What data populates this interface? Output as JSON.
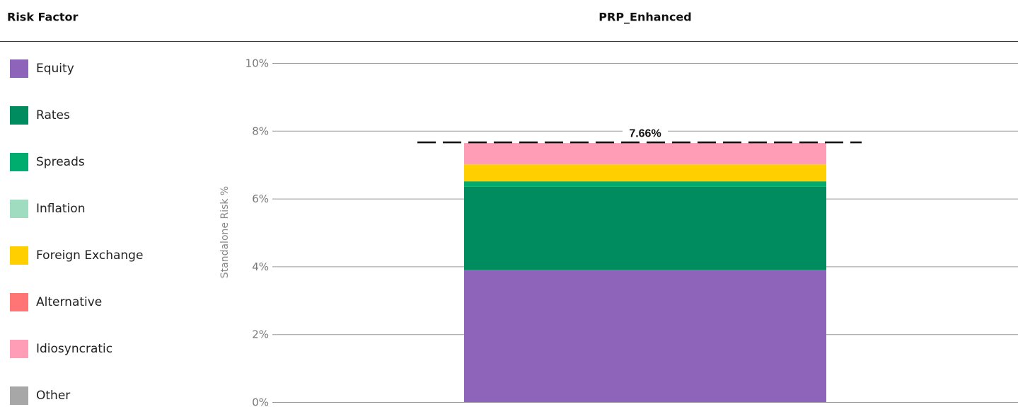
{
  "chart_data": {
    "type": "stacked_bar",
    "legend_title": "Risk Factor",
    "categories": [
      "PRP_Enhanced"
    ],
    "y_label": "Standalone Risk %",
    "series": [
      {
        "name": "Equity",
        "color": "#8e63ba",
        "values": [
          3.9
        ]
      },
      {
        "name": "Rates",
        "color": "#008c5e",
        "values": [
          2.45
        ]
      },
      {
        "name": "Spreads",
        "color": "#00ad6f",
        "values": [
          0.16
        ]
      },
      {
        "name": "Inflation",
        "color": "#9fdcc0",
        "values": [
          0
        ]
      },
      {
        "name": "Foreign Exchange",
        "color": "#ffcf00",
        "values": [
          0.5
        ]
      },
      {
        "name": "Alternative",
        "color": "#ff7474",
        "values": [
          0
        ]
      },
      {
        "name": "Idiosyncratic",
        "color": "#ff9db6",
        "values": [
          0.63
        ]
      },
      {
        "name": "Other",
        "color": "#a7a7a7",
        "values": [
          0
        ]
      }
    ],
    "totals": [
      7.66
    ],
    "total_labels": [
      "7.66%"
    ],
    "ylim": [
      0,
      10
    ],
    "yticks": [
      {
        "value": 0,
        "label": "0%"
      },
      {
        "value": 2,
        "label": "2%"
      },
      {
        "value": 4,
        "label": "4%"
      },
      {
        "value": 6,
        "label": "6%"
      },
      {
        "value": 8,
        "label": "8%"
      },
      {
        "value": 10,
        "label": "10%"
      }
    ],
    "grid": true
  }
}
